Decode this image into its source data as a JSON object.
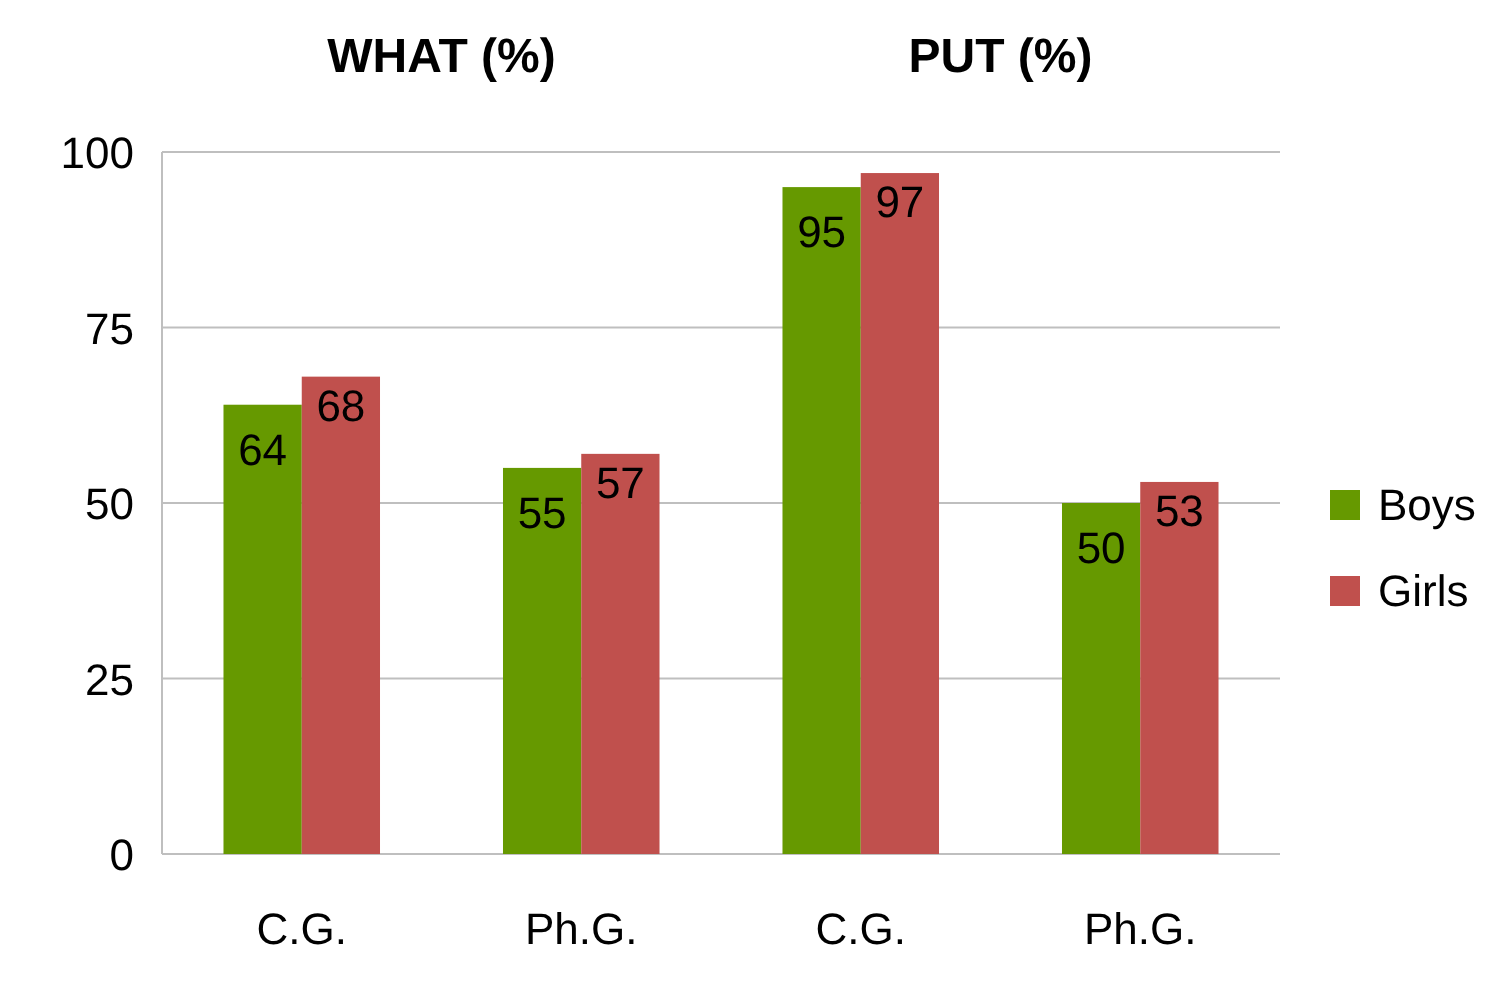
{
  "chart_data": {
    "type": "bar",
    "categories": [
      "C.G.",
      "Ph.G.",
      "C.G.",
      "Ph.G."
    ],
    "series": [
      {
        "name": "Boys",
        "color": "#669900",
        "values": [
          64,
          55,
          95,
          50
        ]
      },
      {
        "name": "Girls",
        "color": "#c0504d",
        "values": [
          68,
          57,
          97,
          53
        ]
      }
    ],
    "ylim": [
      0,
      100
    ],
    "yticks": [
      0,
      25,
      50,
      75,
      100
    ],
    "grid": "y",
    "legend": "right",
    "data_labels": true,
    "annotations": [
      "WHAT (%)",
      "PUT (%)"
    ]
  }
}
